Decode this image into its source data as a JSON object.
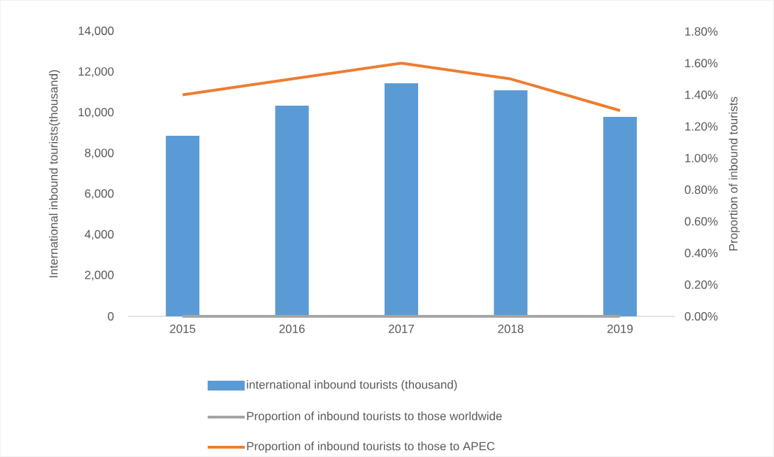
{
  "chart_data": {
    "type": "bar",
    "categories": [
      "2015",
      "2016",
      "2017",
      "2018",
      "2019"
    ],
    "ylabel": "International inbound tourists(thousand)",
    "y2label": "Proportion of inbound tourists",
    "series": [
      {
        "name": "international inbound tourists (thousand)",
        "color": "#5b9bd5",
        "values": [
          8870,
          10350,
          11450,
          11110,
          9800
        ]
      },
      {
        "name": "Proportion of inbound tourists to those worldwide",
        "type": "line",
        "axis": "y2",
        "color": "#a5a5a5",
        "values": [
          0,
          0,
          0,
          0,
          0
        ]
      },
      {
        "name": "Proportion of inbound tourists to those to APEC",
        "type": "line",
        "axis": "y2",
        "color": "#ed7d31",
        "values": [
          1.4,
          1.5,
          1.6,
          1.5,
          1.3
        ]
      }
    ],
    "ylim": [
      0,
      14000
    ],
    "yticks": [
      0,
      {
        "value": 2000,
        "label": "2,000"
      },
      {
        "value": 4000,
        "label": "4,000"
      },
      {
        "value": 6000,
        "label": "6,000"
      },
      {
        "value": 8000,
        "label": "8,000"
      },
      {
        "value": 10000,
        "label": "10,000"
      },
      {
        "value": 12000,
        "label": "12,000"
      },
      {
        "value": 14000,
        "label": "14,000"
      }
    ],
    "y2lim": [
      0,
      1.8
    ],
    "y2ticks": [
      {
        "value": 0,
        "label": "0.00%"
      },
      {
        "value": 0.2,
        "label": "0.20%"
      },
      {
        "value": 0.4,
        "label": "0.40%"
      },
      {
        "value": 0.6,
        "label": "0.60%"
      },
      {
        "value": 0.8,
        "label": "0.80%"
      },
      {
        "value": 1.0,
        "label": "1.00%"
      },
      {
        "value": 1.2,
        "label": "1.20%"
      },
      {
        "value": 1.4,
        "label": "1.40%"
      },
      {
        "value": 1.6,
        "label": "1.60%"
      },
      {
        "value": 1.8,
        "label": "1.80%"
      }
    ],
    "legend": "bottom",
    "grid": false,
    "marker": "none"
  }
}
